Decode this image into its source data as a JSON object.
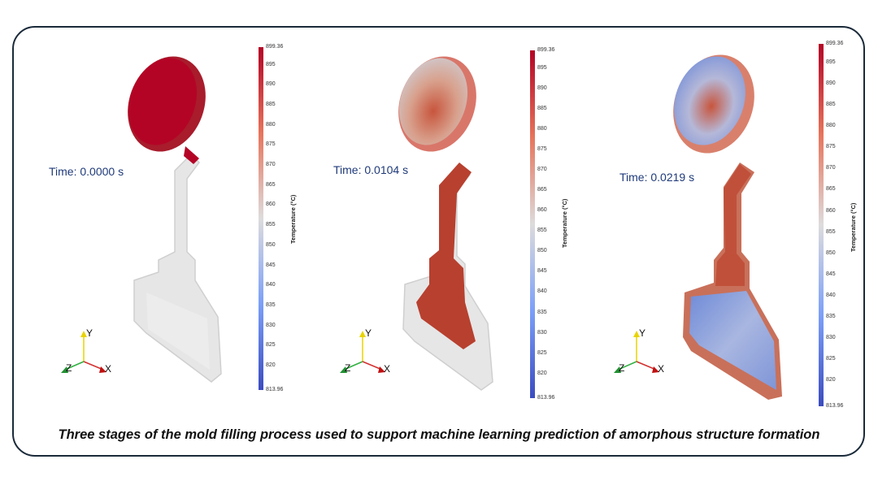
{
  "caption": "Three stages of the mold filling process used to support machine learning prediction of amorphous structure formation",
  "colorbar": {
    "title": "Temperature (°C)",
    "max_label": "899.36",
    "min_label": "813.96",
    "ticks": [
      "895",
      "890",
      "885",
      "880",
      "875",
      "870",
      "865",
      "860",
      "855",
      "850",
      "845",
      "840",
      "835",
      "830",
      "825",
      "820"
    ]
  },
  "axes": {
    "x": "X",
    "y": "Y",
    "z": "Z"
  },
  "panels": [
    {
      "time": "Time: 0.0000 s"
    },
    {
      "time": "Time: 0.0104 s"
    },
    {
      "time": "Time: 0.0219 s"
    }
  ],
  "colors": {
    "hot": "#b40426",
    "cold": "#3b4cc0",
    "mid": "#dddddd",
    "mold": "#e6e6e6"
  }
}
